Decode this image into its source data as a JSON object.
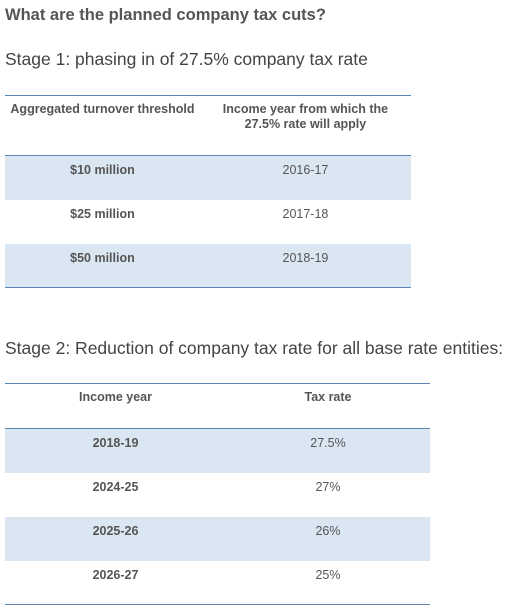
{
  "page": {
    "title": "What are the planned company tax cuts?"
  },
  "stage1": {
    "heading": "Stage 1: phasing in of 27.5% company tax rate",
    "columns": [
      "Aggregated turnover threshold",
      "Income year from which the 27.5% rate will apply"
    ],
    "rows": [
      [
        "$10 million",
        "2016-17"
      ],
      [
        "$25 million",
        "2017-18"
      ],
      [
        "$50 million",
        "2018-19"
      ]
    ]
  },
  "stage2": {
    "heading": "Stage 2: Reduction of company tax rate for all base rate entities:",
    "columns": [
      "Income year",
      "Tax rate"
    ],
    "rows": [
      [
        "2018-19",
        "27.5%"
      ],
      [
        "2024-25",
        "27%"
      ],
      [
        "2025-26",
        "26%"
      ],
      [
        "2026-27",
        "25%"
      ]
    ]
  },
  "colors": {
    "row_shade": "#dbe6f3",
    "rule": "#5b86b2",
    "text": "#555555"
  }
}
